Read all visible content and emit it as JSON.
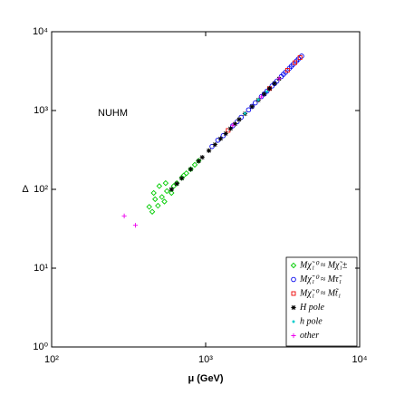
{
  "chart_data": {
    "type": "scatter",
    "xlabel": "μ (GeV)",
    "ylabel": "Δ",
    "annotation": "NUHM",
    "xscale": "log",
    "yscale": "log",
    "xlim": [
      100,
      10000
    ],
    "ylim": [
      1,
      10000
    ],
    "xticks": [
      {
        "value": 100,
        "label": "10²"
      },
      {
        "value": 1000,
        "label": "10³"
      },
      {
        "value": 10000,
        "label": "10⁴"
      }
    ],
    "yticks": [
      {
        "value": 1,
        "label": "10⁰"
      },
      {
        "value": 10,
        "label": "10¹"
      },
      {
        "value": 100,
        "label": "10²"
      },
      {
        "value": 1000,
        "label": "10³"
      },
      {
        "value": 10000,
        "label": "10⁴"
      }
    ],
    "legend": "lower right",
    "series": [
      {
        "name": "Mχ̃₁⁰ ≈ Mχ̃₁±",
        "color": "#00cc00",
        "marker": "diamond",
        "x": [
          430,
          450,
          470,
          490,
          520,
          540,
          560,
          600,
          620,
          650,
          700,
          720,
          750,
          800,
          850,
          900,
          460,
          500,
          550
        ],
        "values": [
          60,
          52,
          75,
          62,
          80,
          70,
          95,
          90,
          110,
          120,
          140,
          150,
          160,
          180,
          205,
          230,
          90,
          110,
          120
        ]
      },
      {
        "name": "Mχ̃₁⁰ ≈ Mτ̃₁",
        "color": "#0000ee",
        "marker": "circle",
        "x": [
          1100,
          1300,
          1500,
          1700,
          1900,
          2100,
          2300,
          2500,
          2700,
          2900,
          3100,
          3300,
          3500,
          3700,
          3900,
          4200,
          1200,
          1600,
          2000,
          2400,
          2800,
          3200,
          3600,
          4000
        ],
        "values": [
          350,
          480,
          640,
          820,
          1020,
          1250,
          1500,
          1760,
          2050,
          2360,
          2700,
          3060,
          3440,
          3850,
          4270,
          4900,
          420,
          720,
          1130,
          1620,
          2200,
          2880,
          3640,
          4500
        ]
      },
      {
        "name": "Mχ̃₁⁰ ≈ Mt̃₁",
        "color": "#ee0000",
        "marker": "square",
        "x": [
          1400,
          2600,
          3400,
          3800,
          4100
        ],
        "values": [
          560,
          1900,
          3250,
          4050,
          4700
        ]
      },
      {
        "name": "H pole",
        "color": "#000000",
        "marker": "star",
        "x": [
          600,
          700,
          800,
          950,
          1050,
          1250,
          1450,
          1650,
          1800,
          2000,
          2200,
          2400,
          2600,
          2800,
          3000,
          650,
          900,
          1150,
          1350,
          1550
        ],
        "values": [
          100,
          138,
          180,
          255,
          310,
          440,
          590,
          770,
          910,
          1120,
          1360,
          1620,
          1900,
          2200,
          2530,
          118,
          228,
          370,
          510,
          675
        ]
      },
      {
        "name": "h pole",
        "color": "#00cccc",
        "marker": "dot",
        "x": [
          1800,
          2200,
          2500
        ],
        "values": [
          920,
          1370,
          1740
        ]
      },
      {
        "name": "other",
        "color": "#ee00ee",
        "marker": "plus",
        "x": [
          296,
          350,
          1500,
          2300,
          3000
        ],
        "values": [
          46,
          35,
          650,
          1490,
          2540
        ]
      }
    ]
  }
}
